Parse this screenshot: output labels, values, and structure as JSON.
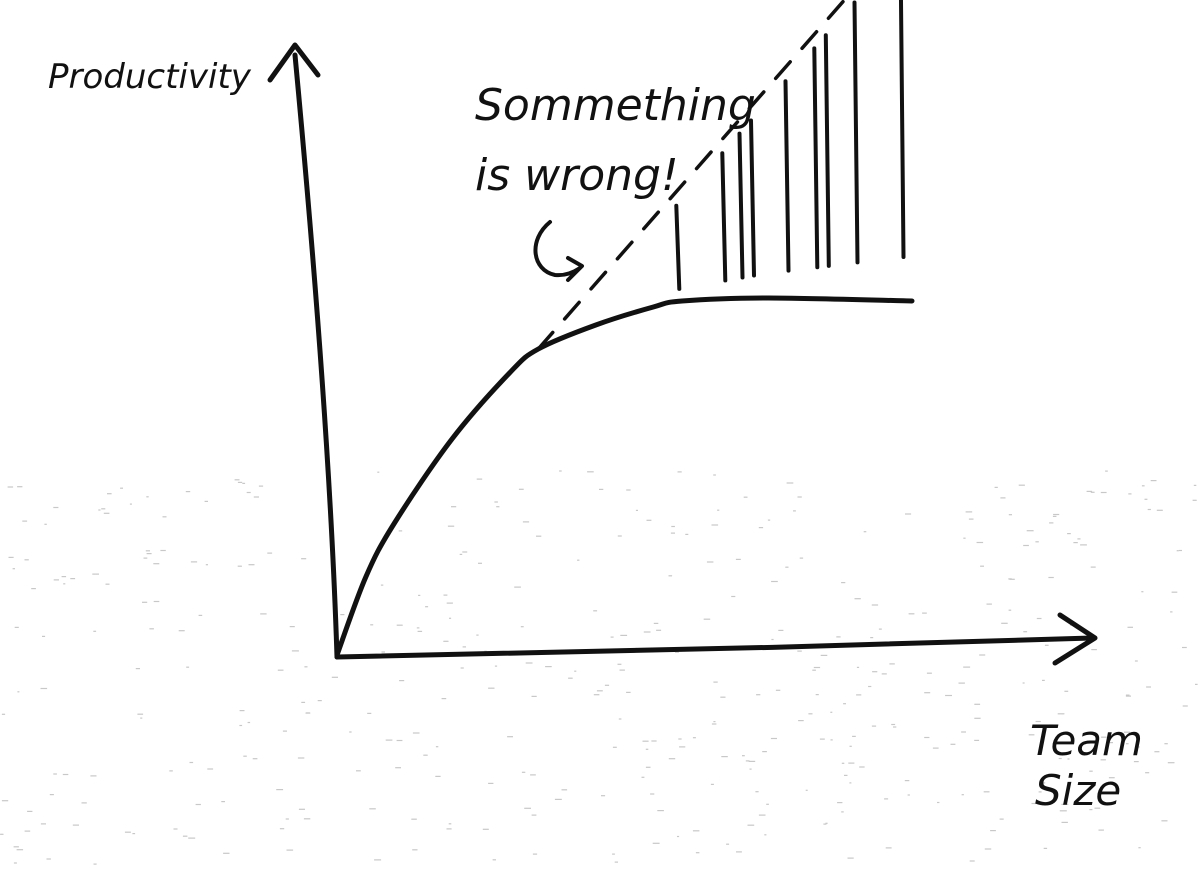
{
  "chart_data": {
    "type": "line",
    "ylabel": "Productivity",
    "xlabel": "Team Size",
    "xlabel_lines": [
      "Team",
      "Size"
    ],
    "annotation_lines": [
      "Sommething",
      "is wrong!"
    ],
    "xlim": [
      0,
      100
    ],
    "ylim": [
      0,
      100
    ],
    "grid": false,
    "legend": "none",
    "series": [
      {
        "style": "solid",
        "x": [
          0,
          5,
          10,
          20,
          30,
          35,
          45,
          55,
          60,
          75,
          100
        ],
        "y": [
          0,
          13,
          22,
          36,
          47,
          51,
          55,
          58,
          59,
          59.5,
          59
        ]
      },
      {
        "style": "dashed",
        "x": [
          35,
          100
        ],
        "y": [
          51,
          122
        ]
      }
    ],
    "gap_hatch_x": [
      59,
      67,
      70,
      72,
      78,
      83,
      85,
      90,
      98
    ]
  }
}
